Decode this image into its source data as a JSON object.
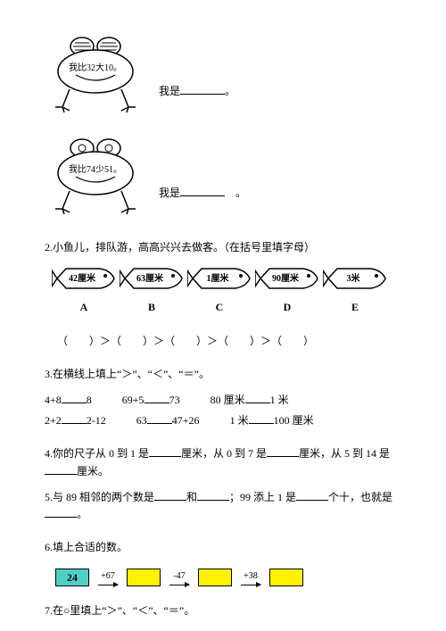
{
  "frog1": {
    "bubble": "我比32大10。",
    "iam_prefix": "我是",
    "iam_suffix": "。"
  },
  "frog2": {
    "bubble": "我比74少51。",
    "iam_prefix": "我是",
    "iam_suffix": "。"
  },
  "q2": {
    "prompt": "2.小鱼儿，排队游，高高兴兴去做客。（在括号里填字母）",
    "fish": [
      {
        "text": "42厘米",
        "label": "A"
      },
      {
        "text": "63厘米",
        "label": "B"
      },
      {
        "text": "1厘米",
        "label": "C"
      },
      {
        "text": "90厘米",
        "label": "D"
      },
      {
        "text": "3米",
        "label": "E"
      }
    ],
    "compare": "（　　）＞（　　）＞（　　）＞（　　）＞（　　）"
  },
  "q3": {
    "prompt": "3.在横线上填上“＞”、“＜”、“＝”。",
    "row1": {
      "a": "4+8",
      "a2": "8",
      "b": "69+5",
      "b2": "73",
      "c": "80 厘米",
      "c2": "1 米"
    },
    "row2": {
      "a": "2+2",
      "a2": "2-12",
      "b": "63",
      "b2": "47+26",
      "c": "1 米",
      "c2": "100 厘米"
    }
  },
  "q4": {
    "t1": "4.你的尺子从 0 到 1 是",
    "t2": "厘米，从 0 到 7 是",
    "t3": "厘米，从 5 到 14 是",
    "t4": "厘米。"
  },
  "q5": {
    "t1": "5.与 89 相邻的两个数是",
    "t2": "和",
    "t3": "；99 添上 1 是",
    "t4": "个十，也就是",
    "t5": "。"
  },
  "q6": {
    "prompt": "6.填上合适的数。",
    "start": "24",
    "ops": [
      "+67",
      "-47",
      "+38"
    ],
    "colors": {
      "start_bg": "#4fd0c7",
      "box_bg": "#fff200",
      "border": "#000000"
    }
  },
  "q7": {
    "prompt": "7.在○里填上“＞”、“＜”、“＝”。"
  }
}
